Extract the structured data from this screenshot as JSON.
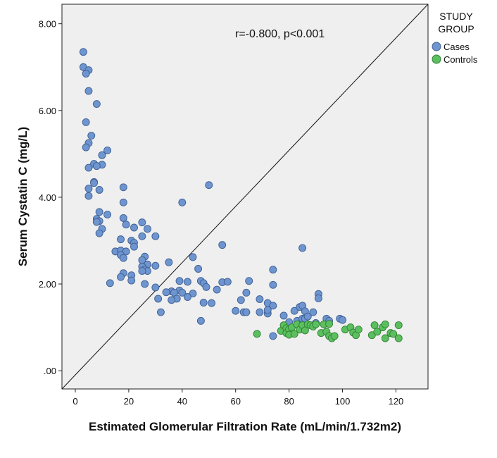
{
  "chart_data": {
    "type": "scatter",
    "xlabel": "Estimated Glomerular Filtration Rate (mL/min/1.732m2)",
    "ylabel": "Serum Cystatin C (mg/L)",
    "xlim": [
      -5,
      132
    ],
    "ylim": [
      -0.42,
      8.45
    ],
    "x_ticks": [
      0,
      20,
      40,
      60,
      80,
      100,
      120
    ],
    "x_tick_labels": [
      "0",
      "20",
      "40",
      "60",
      "80",
      "100",
      "120"
    ],
    "y_ticks": [
      0,
      2,
      4,
      6,
      8
    ],
    "y_tick_labels": [
      ".00",
      "2.00",
      "4.00",
      "6.00",
      "8.00"
    ],
    "annotation": "r=-0.800, p<0.001",
    "reference_line": "diagonal",
    "legend": {
      "title_lines": [
        "STUDY",
        "GROUP"
      ],
      "placement": "top-right-outside",
      "entries": [
        "Cases",
        "Controls"
      ]
    },
    "colors": {
      "Cases": "#6e95cf",
      "Controls": "#5cbf5f",
      "plot_bg": "#efefef"
    },
    "series": [
      {
        "name": "Cases",
        "points": [
          [
            3,
            7.35
          ],
          [
            3,
            7.0
          ],
          [
            5,
            6.93
          ],
          [
            4,
            6.85
          ],
          [
            5,
            6.45
          ],
          [
            8,
            6.15
          ],
          [
            4,
            5.73
          ],
          [
            6,
            5.42
          ],
          [
            5,
            5.25
          ],
          [
            4,
            5.15
          ],
          [
            12,
            5.08
          ],
          [
            10,
            4.97
          ],
          [
            10,
            4.75
          ],
          [
            7,
            4.77
          ],
          [
            8,
            4.72
          ],
          [
            5,
            4.68
          ],
          [
            7,
            4.35
          ],
          [
            7,
            4.33
          ],
          [
            5,
            4.2
          ],
          [
            9,
            4.17
          ],
          [
            5,
            4.03
          ],
          [
            18,
            4.23
          ],
          [
            18,
            3.88
          ],
          [
            40,
            3.88
          ],
          [
            50,
            4.28
          ],
          [
            9,
            3.66
          ],
          [
            12,
            3.6
          ],
          [
            8,
            3.5
          ],
          [
            9,
            3.45
          ],
          [
            8,
            3.43
          ],
          [
            18,
            3.52
          ],
          [
            19,
            3.37
          ],
          [
            25,
            3.42
          ],
          [
            22,
            3.3
          ],
          [
            27,
            3.27
          ],
          [
            10,
            3.27
          ],
          [
            9,
            3.17
          ],
          [
            17,
            3.03
          ],
          [
            21,
            3.0
          ],
          [
            22,
            2.95
          ],
          [
            25,
            3.1
          ],
          [
            30,
            3.1
          ],
          [
            22,
            2.86
          ],
          [
            55,
            2.9
          ],
          [
            15,
            2.75
          ],
          [
            17,
            2.77
          ],
          [
            19,
            2.75
          ],
          [
            17,
            2.67
          ],
          [
            18,
            2.6
          ],
          [
            26,
            2.63
          ],
          [
            25,
            2.55
          ],
          [
            27,
            2.45
          ],
          [
            35,
            2.5
          ],
          [
            44,
            2.62
          ],
          [
            25,
            2.4
          ],
          [
            26,
            2.33
          ],
          [
            27,
            2.3
          ],
          [
            25,
            2.3
          ],
          [
            30,
            2.42
          ],
          [
            46,
            2.35
          ],
          [
            74,
            2.33
          ],
          [
            18,
            2.25
          ],
          [
            17,
            2.16
          ],
          [
            21,
            2.2
          ],
          [
            21,
            2.08
          ],
          [
            13,
            2.02
          ],
          [
            26,
            2.0
          ],
          [
            36,
            1.83
          ],
          [
            39,
            2.07
          ],
          [
            42,
            2.05
          ],
          [
            47,
            2.07
          ],
          [
            48,
            2.02
          ],
          [
            55,
            2.04
          ],
          [
            57,
            2.05
          ],
          [
            65,
            2.07
          ],
          [
            74,
            1.98
          ],
          [
            30,
            1.92
          ],
          [
            49,
            1.93
          ],
          [
            53,
            1.87
          ],
          [
            39,
            1.85
          ],
          [
            34,
            1.81
          ],
          [
            37,
            1.8
          ],
          [
            40,
            1.8
          ],
          [
            44,
            1.78
          ],
          [
            64,
            1.8
          ],
          [
            31,
            1.66
          ],
          [
            38,
            1.66
          ],
          [
            42,
            1.7
          ],
          [
            36,
            1.63
          ],
          [
            48,
            1.57
          ],
          [
            51,
            1.56
          ],
          [
            62,
            1.63
          ],
          [
            69,
            1.65
          ],
          [
            72,
            1.56
          ],
          [
            74,
            1.5
          ],
          [
            32,
            1.35
          ],
          [
            60,
            1.38
          ],
          [
            63,
            1.35
          ],
          [
            64,
            1.35
          ],
          [
            69,
            1.35
          ],
          [
            72,
            1.32
          ],
          [
            72,
            1.4
          ],
          [
            47,
            1.15
          ],
          [
            74,
            0.8
          ],
          [
            78,
            1.27
          ],
          [
            82,
            1.38
          ],
          [
            84,
            1.47
          ],
          [
            85,
            1.5
          ],
          [
            85,
            2.83
          ],
          [
            86,
            1.37
          ],
          [
            89,
            1.35
          ],
          [
            91,
            1.77
          ],
          [
            91,
            1.67
          ],
          [
            80,
            1.12
          ],
          [
            83,
            1.15
          ],
          [
            85,
            1.2
          ],
          [
            86,
            1.2
          ],
          [
            87,
            1.25
          ],
          [
            90,
            1.1
          ],
          [
            94,
            1.2
          ],
          [
            95,
            1.15
          ],
          [
            99,
            1.2
          ],
          [
            100,
            1.17
          ]
        ]
      },
      {
        "name": "Controls",
        "points": [
          [
            68,
            0.85
          ],
          [
            77,
            0.92
          ],
          [
            78,
            1.05
          ],
          [
            79,
            0.98
          ],
          [
            79,
            0.87
          ],
          [
            80,
            0.95
          ],
          [
            80,
            0.83
          ],
          [
            81,
            1.0
          ],
          [
            82,
            0.85
          ],
          [
            83,
            1.07
          ],
          [
            84,
            0.95
          ],
          [
            85,
            1.05
          ],
          [
            86,
            0.93
          ],
          [
            87,
            1.07
          ],
          [
            88,
            1.05
          ],
          [
            89,
            1.02
          ],
          [
            90,
            1.07
          ],
          [
            92,
            0.87
          ],
          [
            93,
            1.07
          ],
          [
            94,
            0.9
          ],
          [
            95,
            0.8
          ],
          [
            95,
            1.08
          ],
          [
            96,
            0.75
          ],
          [
            97,
            0.8
          ],
          [
            101,
            0.95
          ],
          [
            103,
            1.0
          ],
          [
            104,
            0.88
          ],
          [
            105,
            0.82
          ],
          [
            106,
            0.95
          ],
          [
            111,
            0.82
          ],
          [
            112,
            1.05
          ],
          [
            113,
            0.9
          ],
          [
            115,
            1.0
          ],
          [
            116,
            1.07
          ],
          [
            116,
            0.75
          ],
          [
            118,
            0.87
          ],
          [
            119,
            0.85
          ],
          [
            121,
            1.05
          ],
          [
            121,
            0.75
          ]
        ]
      }
    ]
  }
}
